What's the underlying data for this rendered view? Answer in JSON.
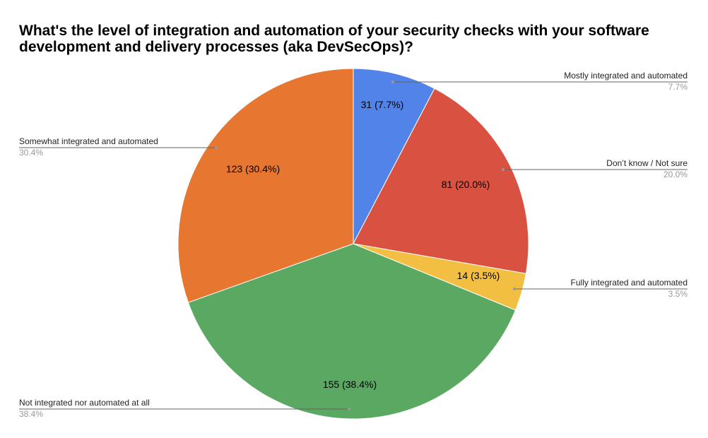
{
  "chart_data": {
    "type": "pie",
    "title": "What's the level of integration and automation of your security checks with your software development and delivery processes (aka DevSecOps)?",
    "slices": [
      {
        "name": "Mostly integrated and automated",
        "value": 31,
        "percent": "7.7%",
        "slice_label": "31 (7.7%)",
        "color": "#5283e9"
      },
      {
        "name": "Don’t know / Not sure",
        "value": 81,
        "percent": "20.0%",
        "slice_label": "81 (20.0%)",
        "color": "#d95141"
      },
      {
        "name": "Fully integrated and automated",
        "value": 14,
        "percent": "3.5%",
        "slice_label": "14 (3.5%)",
        "color": "#f2bf42"
      },
      {
        "name": "Not integrated nor automated at all",
        "value": 155,
        "percent": "38.4%",
        "slice_label": "155 (38.4%)",
        "color": "#5aa862"
      },
      {
        "name": "Somewhat integrated and automated",
        "value": 123,
        "percent": "30.4%",
        "slice_label": "123 (30.4%)",
        "color": "#e67630"
      }
    ]
  }
}
